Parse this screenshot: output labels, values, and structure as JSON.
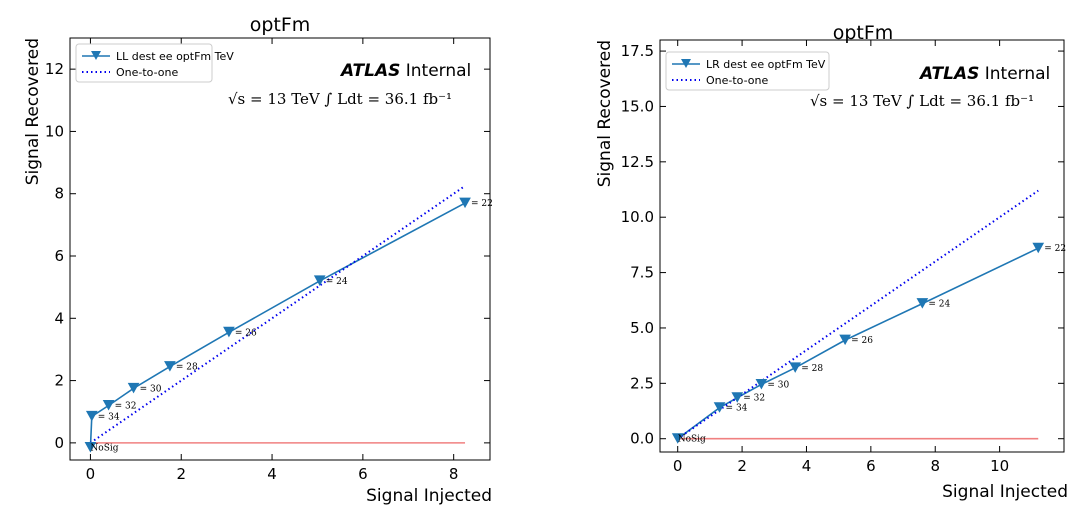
{
  "chart_data": [
    {
      "type": "line",
      "title": "optFm",
      "xlabel": "Signal Injected",
      "ylabel": "Signal Recovered",
      "xlim": [
        -0.45,
        8.8
      ],
      "ylim": [
        -0.55,
        13.0
      ],
      "xticks": [
        0,
        2,
        4,
        6,
        8
      ],
      "yticks": [
        0,
        2,
        4,
        6,
        8,
        10,
        12
      ],
      "xtick_labels": [
        "0",
        "2",
        "4",
        "6",
        "8"
      ],
      "ytick_labels": [
        "0",
        "2",
        "4",
        "6",
        "8",
        "10",
        "12"
      ],
      "grid": false,
      "legend_position": "top-left",
      "atlas_label": "ATLAS",
      "atlas_suffix": "Internal",
      "lumi_text": "√s = 13 TeV  ∫ Ldt = 36.1 fb⁻¹",
      "series": [
        {
          "name": "LL dest ee optFm TeV",
          "color": "#1f77b4",
          "marker": "triangle-down",
          "x": [
            0.0,
            0.03,
            0.4,
            0.95,
            1.75,
            3.05,
            5.05,
            8.25
          ],
          "y": [
            -0.15,
            0.85,
            1.2,
            1.75,
            2.45,
            3.55,
            5.2,
            7.7
          ],
          "point_labels": [
            "NoSig",
            "= 34",
            "= 32",
            "= 30",
            "= 28",
            "= 26",
            "= 24",
            "= 22"
          ]
        },
        {
          "name": "One-to-one",
          "color": "#0000ee",
          "style": "dotted",
          "x": [
            0.0,
            8.25
          ],
          "y": [
            0.0,
            8.25
          ]
        },
        {
          "name": "",
          "color": "#f08080",
          "style": "solid",
          "x": [
            0.0,
            8.25
          ],
          "y": [
            0.0,
            0.0
          ]
        }
      ]
    },
    {
      "type": "line",
      "title": "optFm",
      "xlabel": "Signal Injected",
      "ylabel": "Signal Recovered",
      "xlim": [
        -0.55,
        12.0
      ],
      "ylim": [
        -0.6,
        18.0
      ],
      "xticks": [
        0,
        2,
        4,
        6,
        8,
        10
      ],
      "yticks": [
        0.0,
        2.5,
        5.0,
        7.5,
        10.0,
        12.5,
        15.0,
        17.5
      ],
      "xtick_labels": [
        "0",
        "2",
        "4",
        "6",
        "8",
        "10"
      ],
      "ytick_labels": [
        "0.0",
        "2.5",
        "5.0",
        "7.5",
        "10.0",
        "12.5",
        "15.0",
        "17.5"
      ],
      "grid": false,
      "legend_position": "top-left",
      "atlas_label": "ATLAS",
      "atlas_suffix": "Internal",
      "lumi_text": "√s = 13 TeV  ∫ Ldt = 36.1 fb⁻¹",
      "series": [
        {
          "name": "LR dest ee optFm TeV",
          "color": "#1f77b4",
          "marker": "triangle-down",
          "x": [
            0.0,
            1.3,
            1.85,
            2.6,
            3.65,
            5.2,
            7.6,
            11.2
          ],
          "y": [
            0.0,
            1.4,
            1.85,
            2.45,
            3.2,
            4.45,
            6.1,
            8.6
          ],
          "point_labels": [
            "NoSig",
            "= 34",
            "= 32",
            "= 30",
            "= 28",
            "= 26",
            "= 24",
            "= 22"
          ]
        },
        {
          "name": "One-to-one",
          "color": "#0000ee",
          "style": "dotted",
          "x": [
            0.0,
            11.2
          ],
          "y": [
            0.0,
            11.2
          ]
        },
        {
          "name": "",
          "color": "#f08080",
          "style": "solid",
          "x": [
            0.0,
            11.2
          ],
          "y": [
            0.0,
            0.0
          ]
        }
      ]
    }
  ]
}
